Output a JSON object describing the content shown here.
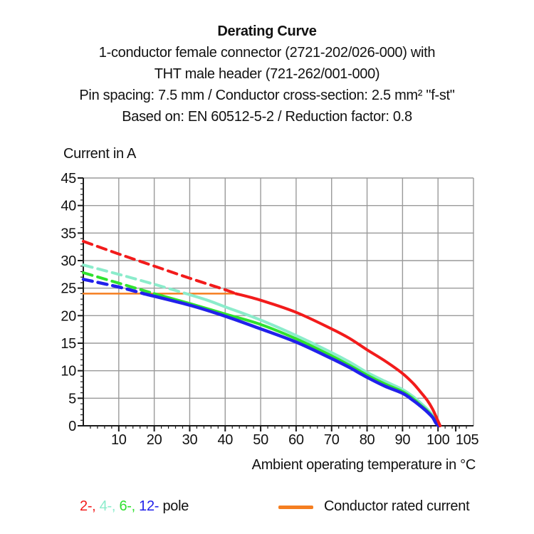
{
  "title": {
    "main": "Derating Curve",
    "sub": [
      "1-conductor female connector (2721-202/026-000) with",
      "THT male header (721-262/001-000)",
      "Pin spacing: 7.5 mm / Conductor cross-section: 2.5 mm² \"f-st\"",
      "Based on: EN 60512-5-2 / Reduction factor: 0.8"
    ]
  },
  "chart_data": {
    "type": "line",
    "title": "Derating Curve",
    "xlabel": "Ambient operating temperature in °C",
    "ylabel": "Current in A",
    "xlim": [
      0,
      110
    ],
    "ylim": [
      0,
      45
    ],
    "x_ticks": [
      10,
      20,
      30,
      40,
      50,
      60,
      70,
      80,
      90,
      100,
      105
    ],
    "y_ticks": [
      0,
      5,
      10,
      15,
      20,
      25,
      30,
      35,
      40,
      45
    ],
    "grid": true,
    "grid_color": "#9a9a9a",
    "axis_color": "#1a1a1a",
    "legend_position": "bottom",
    "series": [
      {
        "name": "Conductor rated current",
        "color": "#f57e20",
        "line_style": "solid",
        "width": 2.5,
        "points": [
          [
            0,
            24
          ],
          [
            43.5,
            24
          ]
        ]
      },
      {
        "name": "4-pole",
        "color": "#8beccb",
        "dash_until": 29,
        "width": 4,
        "points": [
          [
            0,
            29.2
          ],
          [
            10,
            27.5
          ],
          [
            20,
            25.7
          ],
          [
            29,
            24.0
          ],
          [
            35,
            22.8
          ],
          [
            40,
            21.6
          ],
          [
            50,
            19.2
          ],
          [
            60,
            16.4
          ],
          [
            70,
            13.3
          ],
          [
            75,
            11.6
          ],
          [
            80,
            9.7
          ],
          [
            85,
            8.1
          ],
          [
            90,
            6.6
          ],
          [
            93,
            5.3
          ],
          [
            95,
            4.2
          ],
          [
            97,
            3.0
          ],
          [
            98.5,
            1.9
          ],
          [
            99.6,
            0.8
          ],
          [
            100.4,
            0
          ]
        ]
      },
      {
        "name": "6-pole",
        "color": "#2fe12f",
        "dash_until": 20,
        "width": 4,
        "points": [
          [
            0,
            27.8
          ],
          [
            10,
            25.9
          ],
          [
            20,
            24.0
          ],
          [
            30,
            22.2
          ],
          [
            40,
            20.3
          ],
          [
            50,
            18.4
          ],
          [
            60,
            15.8
          ],
          [
            70,
            12.7
          ],
          [
            75,
            11.0
          ],
          [
            80,
            9.2
          ],
          [
            85,
            7.6
          ],
          [
            90,
            6.2
          ],
          [
            93,
            4.9
          ],
          [
            95,
            3.8
          ],
          [
            97,
            2.7
          ],
          [
            98.5,
            1.6
          ],
          [
            99.5,
            0.6
          ],
          [
            100.3,
            0
          ]
        ]
      },
      {
        "name": "12-pole",
        "color": "#2121eb",
        "dash_until": 17,
        "width": 4.5,
        "points": [
          [
            0,
            26.6
          ],
          [
            10,
            25.2
          ],
          [
            17,
            24.0
          ],
          [
            30,
            21.9
          ],
          [
            40,
            19.9
          ],
          [
            50,
            17.6
          ],
          [
            60,
            15.2
          ],
          [
            70,
            12.2
          ],
          [
            75,
            10.6
          ],
          [
            80,
            8.8
          ],
          [
            85,
            7.2
          ],
          [
            90,
            5.9
          ],
          [
            93,
            4.6
          ],
          [
            95,
            3.6
          ],
          [
            97,
            2.5
          ],
          [
            98.5,
            1.5
          ],
          [
            99.4,
            0.5
          ],
          [
            100.2,
            0
          ]
        ]
      },
      {
        "name": "2-pole",
        "color": "#f21b1b",
        "dash_until": 43,
        "width": 4,
        "points": [
          [
            0,
            33.5
          ],
          [
            10,
            31.2
          ],
          [
            20,
            29.0
          ],
          [
            30,
            26.8
          ],
          [
            40,
            24.7
          ],
          [
            43,
            24.0
          ],
          [
            50,
            22.8
          ],
          [
            60,
            20.6
          ],
          [
            70,
            17.6
          ],
          [
            75,
            15.9
          ],
          [
            80,
            13.8
          ],
          [
            85,
            11.8
          ],
          [
            90,
            9.5
          ],
          [
            93,
            7.7
          ],
          [
            95,
            6.2
          ],
          [
            97,
            4.6
          ],
          [
            98.5,
            3.0
          ],
          [
            99.7,
            1.3
          ],
          [
            100.6,
            0
          ]
        ]
      }
    ],
    "annotations": {
      "rated_current_value_a": 24
    }
  },
  "legend": {
    "poles": [
      {
        "label": "2-",
        "color": "#f21b1b"
      },
      {
        "label": "4-",
        "color": "#8beccb"
      },
      {
        "label": "6-",
        "color": "#2fe12f"
      },
      {
        "label": "12-",
        "color": "#2121eb"
      }
    ],
    "suffix": "pole",
    "rated": {
      "label": "Conductor rated current",
      "color": "#f57e20"
    }
  }
}
